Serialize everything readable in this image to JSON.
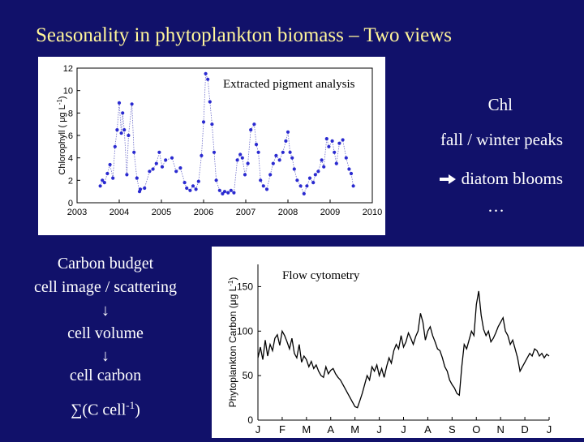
{
  "slide": {
    "title": "Seasonality in phytoplankton biomass – Two views",
    "title_color": "#fff59a",
    "background": "#11116a"
  },
  "right_notes": {
    "line1": "Chl",
    "line2": "fall / winter peaks",
    "line3": "diatom blooms",
    "line3_arrow_icon": "arrow-right-icon",
    "line4": "…"
  },
  "left_notes": {
    "line1": "Carbon budget",
    "line2": "cell image / scattering",
    "arrow1": "↓",
    "line3": "cell volume",
    "arrow2": "↓",
    "line4": "cell carbon",
    "formula_prefix": "∑(C cell",
    "formula_sup": "-1",
    "formula_suffix": ")"
  },
  "chart_data": [
    {
      "type": "scatter",
      "title": "Extracted pigment analysis",
      "ylabel": "Chlorophyll ( μg L",
      "ylabel_sup": "-1",
      "ylabel_close": ")",
      "xlim": [
        2003,
        2010
      ],
      "ylim": [
        0,
        12
      ],
      "x_ticks": [
        "2003",
        "2004",
        "2005",
        "2006",
        "2007",
        "2008",
        "2009",
        "2010"
      ],
      "y_ticks": [
        "0",
        "2",
        "4",
        "6",
        "8",
        "10",
        "12"
      ],
      "color": "#2a2ad0",
      "series": [
        {
          "points": [
            [
              2003.55,
              1.5
            ],
            [
              2003.6,
              2.0
            ],
            [
              2003.65,
              1.8
            ],
            [
              2003.72,
              2.6
            ],
            [
              2003.78,
              3.4
            ],
            [
              2003.85,
              2.2
            ],
            [
              2003.9,
              5.0
            ],
            [
              2003.95,
              6.5
            ],
            [
              2004.0,
              8.9
            ],
            [
              2004.05,
              6.2
            ],
            [
              2004.08,
              8.0
            ],
            [
              2004.12,
              6.5
            ],
            [
              2004.18,
              2.5
            ],
            [
              2004.22,
              6.0
            ],
            [
              2004.3,
              8.8
            ],
            [
              2004.35,
              4.5
            ],
            [
              2004.42,
              2.2
            ],
            [
              2004.48,
              1.0
            ],
            [
              2004.5,
              1.2
            ],
            [
              2004.6,
              1.3
            ],
            [
              2004.72,
              2.8
            ],
            [
              2004.8,
              3.0
            ],
            [
              2004.88,
              3.5
            ],
            [
              2004.95,
              4.5
            ],
            [
              2005.02,
              3.2
            ],
            [
              2005.1,
              3.8
            ],
            [
              2005.25,
              4.0
            ],
            [
              2005.35,
              2.8
            ],
            [
              2005.45,
              3.1
            ],
            [
              2005.55,
              1.8
            ],
            [
              2005.6,
              1.3
            ],
            [
              2005.68,
              1.1
            ],
            [
              2005.75,
              1.5
            ],
            [
              2005.82,
              1.2
            ],
            [
              2005.88,
              1.9
            ],
            [
              2005.95,
              4.2
            ],
            [
              2006.0,
              7.2
            ],
            [
              2006.05,
              11.5
            ],
            [
              2006.1,
              11.0
            ],
            [
              2006.15,
              9.0
            ],
            [
              2006.2,
              7.0
            ],
            [
              2006.25,
              4.5
            ],
            [
              2006.3,
              2.0
            ],
            [
              2006.38,
              1.1
            ],
            [
              2006.45,
              0.8
            ],
            [
              2006.5,
              1.0
            ],
            [
              2006.58,
              0.9
            ],
            [
              2006.65,
              1.1
            ],
            [
              2006.72,
              0.9
            ],
            [
              2006.8,
              3.8
            ],
            [
              2006.87,
              4.3
            ],
            [
              2006.92,
              4.0
            ],
            [
              2006.98,
              2.5
            ],
            [
              2007.05,
              3.5
            ],
            [
              2007.12,
              6.5
            ],
            [
              2007.2,
              7.0
            ],
            [
              2007.25,
              5.2
            ],
            [
              2007.3,
              4.5
            ],
            [
              2007.35,
              2.0
            ],
            [
              2007.42,
              1.5
            ],
            [
              2007.5,
              1.2
            ],
            [
              2007.58,
              2.5
            ],
            [
              2007.65,
              3.5
            ],
            [
              2007.72,
              4.2
            ],
            [
              2007.8,
              3.8
            ],
            [
              2007.88,
              4.5
            ],
            [
              2007.95,
              5.5
            ],
            [
              2008.0,
              6.3
            ],
            [
              2008.05,
              4.5
            ],
            [
              2008.1,
              4.0
            ],
            [
              2008.15,
              3.0
            ],
            [
              2008.22,
              2.0
            ],
            [
              2008.3,
              1.5
            ],
            [
              2008.38,
              0.8
            ],
            [
              2008.45,
              1.5
            ],
            [
              2008.52,
              2.2
            ],
            [
              2008.6,
              1.8
            ],
            [
              2008.65,
              2.5
            ],
            [
              2008.72,
              2.8
            ],
            [
              2008.8,
              3.8
            ],
            [
              2008.85,
              3.2
            ],
            [
              2008.92,
              5.7
            ],
            [
              2008.97,
              5.0
            ],
            [
              2009.05,
              5.5
            ],
            [
              2009.1,
              4.5
            ],
            [
              2009.15,
              3.5
            ],
            [
              2009.22,
              5.3
            ],
            [
              2009.3,
              5.6
            ],
            [
              2009.38,
              4.0
            ],
            [
              2009.45,
              3.0
            ],
            [
              2009.5,
              2.6
            ],
            [
              2009.55,
              1.5
            ]
          ]
        }
      ]
    },
    {
      "type": "line",
      "title": "Flow cytometry",
      "ylabel": "Phytoplankton Carbon (μg L",
      "ylabel_sup": "-1",
      "ylabel_close": ")",
      "categories": [
        "J",
        "F",
        "M",
        "A",
        "M",
        "J",
        "J",
        "A",
        "S",
        "O",
        "N",
        "D",
        "J"
      ],
      "xlim": [
        0,
        12
      ],
      "ylim": [
        0,
        175
      ],
      "y_ticks": [
        {
          "v": 0,
          "label": "0"
        },
        {
          "v": 50,
          "label": "50"
        },
        {
          "v": 100,
          "label": "100"
        },
        {
          "v": 150,
          "label": "150"
        }
      ],
      "color": "#000000",
      "series": [
        {
          "x": [
            0,
            0.1,
            0.2,
            0.3,
            0.4,
            0.5,
            0.6,
            0.7,
            0.8,
            0.9,
            1.0,
            1.1,
            1.2,
            1.3,
            1.4,
            1.5,
            1.6,
            1.7,
            1.8,
            1.9,
            2.0,
            2.1,
            2.2,
            2.3,
            2.4,
            2.5,
            2.6,
            2.7,
            2.8,
            2.9,
            3.0,
            3.1,
            3.2,
            3.3,
            3.4,
            3.5,
            3.6,
            3.7,
            3.8,
            3.9,
            4.0,
            4.1,
            4.2,
            4.3,
            4.4,
            4.5,
            4.6,
            4.7,
            4.8,
            4.9,
            5.0,
            5.1,
            5.2,
            5.3,
            5.4,
            5.5,
            5.6,
            5.7,
            5.8,
            5.9,
            6.0,
            6.1,
            6.2,
            6.3,
            6.4,
            6.5,
            6.6,
            6.7,
            6.8,
            6.9,
            7.0,
            7.1,
            7.2,
            7.3,
            7.4,
            7.5,
            7.6,
            7.7,
            7.8,
            7.9,
            8.0,
            8.1,
            8.2,
            8.3,
            8.4,
            8.5,
            8.6,
            8.7,
            8.8,
            8.9,
            9.0,
            9.1,
            9.2,
            9.3,
            9.4,
            9.5,
            9.6,
            9.7,
            9.8,
            9.9,
            10.0,
            10.1,
            10.2,
            10.3,
            10.4,
            10.5,
            10.6,
            10.7,
            10.8,
            10.9,
            11.0,
            11.1,
            11.2,
            11.3,
            11.4,
            11.5,
            11.6,
            11.7,
            11.8,
            11.9,
            12.0
          ],
          "values": [
            70,
            82,
            68,
            90,
            72,
            85,
            78,
            92,
            96,
            84,
            100,
            95,
            88,
            80,
            92,
            75,
            70,
            85,
            65,
            72,
            68,
            60,
            66,
            58,
            62,
            55,
            50,
            48,
            60,
            52,
            56,
            58,
            52,
            48,
            45,
            40,
            35,
            30,
            25,
            20,
            15,
            14,
            22,
            30,
            40,
            50,
            45,
            60,
            55,
            62,
            50,
            58,
            48,
            60,
            70,
            64,
            78,
            85,
            80,
            95,
            82,
            88,
            98,
            92,
            85,
            94,
            100,
            120,
            110,
            90,
            100,
            105,
            95,
            88,
            80,
            78,
            70,
            60,
            55,
            45,
            40,
            36,
            30,
            28,
            60,
            85,
            80,
            90,
            100,
            95,
            130,
            145,
            118,
            102,
            95,
            100,
            88,
            92,
            98,
            105,
            110,
            115,
            100,
            95,
            85,
            90,
            80,
            70,
            55,
            60,
            65,
            70,
            75,
            72,
            80,
            78,
            72,
            75,
            70,
            74,
            72
          ]
        }
      ]
    }
  ]
}
